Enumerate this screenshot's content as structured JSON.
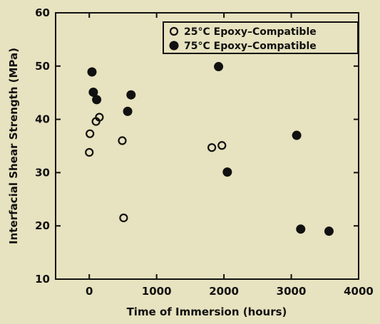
{
  "chart_data": {
    "type": "scatter",
    "xlabel": "Time of Immersion (hours)",
    "ylabel": "Interfacial Shear Strength (MPa)",
    "xlim": [
      -500,
      4000
    ],
    "ylim": [
      10,
      60
    ],
    "xticks": [
      0,
      1000,
      2000,
      3000,
      4000
    ],
    "yticks": [
      10,
      20,
      30,
      40,
      50,
      60
    ],
    "xtick_labels": [
      "0",
      "1000",
      "2000",
      "3000",
      "4000"
    ],
    "ytick_labels": [
      "10",
      "20",
      "30",
      "40",
      "50",
      "60"
    ],
    "legend_position": "top-right",
    "grid": false,
    "series": [
      {
        "name": "25°C Epoxy–Compatible",
        "marker": "open-circle",
        "points": [
          {
            "x": 0,
            "y": 33.8
          },
          {
            "x": 10,
            "y": 37.3
          },
          {
            "x": 100,
            "y": 39.6
          },
          {
            "x": 150,
            "y": 40.4
          },
          {
            "x": 490,
            "y": 36.0
          },
          {
            "x": 510,
            "y": 21.5
          },
          {
            "x": 1820,
            "y": 34.7
          },
          {
            "x": 1970,
            "y": 35.1
          }
        ]
      },
      {
        "name": "75°C Epoxy–Compatible",
        "marker": "filled-circle",
        "points": [
          {
            "x": 40,
            "y": 48.9
          },
          {
            "x": 60,
            "y": 45.1
          },
          {
            "x": 110,
            "y": 43.7
          },
          {
            "x": 570,
            "y": 41.5
          },
          {
            "x": 620,
            "y": 44.6
          },
          {
            "x": 1920,
            "y": 49.9
          },
          {
            "x": 2050,
            "y": 30.1
          },
          {
            "x": 3080,
            "y": 37.0
          },
          {
            "x": 3140,
            "y": 19.4
          },
          {
            "x": 3560,
            "y": 19.0
          }
        ]
      }
    ]
  }
}
